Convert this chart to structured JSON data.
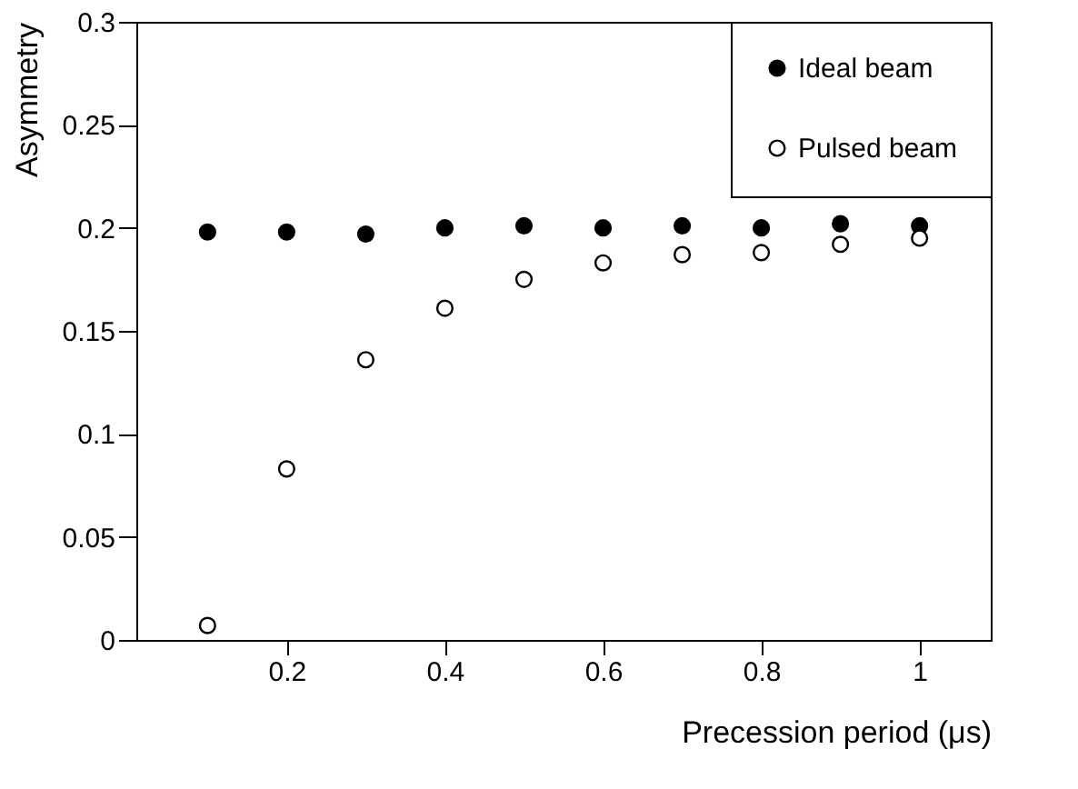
{
  "chart_data": {
    "type": "scatter",
    "xlabel": "Precession period (μs)",
    "ylabel": "Asymmetry",
    "x": [
      0.1,
      0.2,
      0.3,
      0.4,
      0.5,
      0.6,
      0.7,
      0.8,
      0.9,
      1.0
    ],
    "series": [
      {
        "name": "Ideal beam",
        "color": "#000000",
        "values": [
          0.198,
          0.198,
          0.197,
          0.2,
          0.201,
          0.2,
          0.201,
          0.2,
          0.202,
          0.201
        ]
      },
      {
        "name": "Pulsed beam",
        "color": "#ffffff",
        "values": [
          0.007,
          0.083,
          0.136,
          0.161,
          0.175,
          0.183,
          0.187,
          0.188,
          0.192,
          0.195
        ]
      }
    ],
    "marker": "circle",
    "xlim": [
      0.01,
      1.09
    ],
    "ylim": [
      0,
      0.3
    ],
    "xticks": [
      0.2,
      0.4,
      0.6,
      0.8,
      1
    ],
    "yticks": [
      0,
      0.05,
      0.1,
      0.15,
      0.2,
      0.25,
      0.3
    ],
    "grid": false,
    "legend": "top right"
  }
}
